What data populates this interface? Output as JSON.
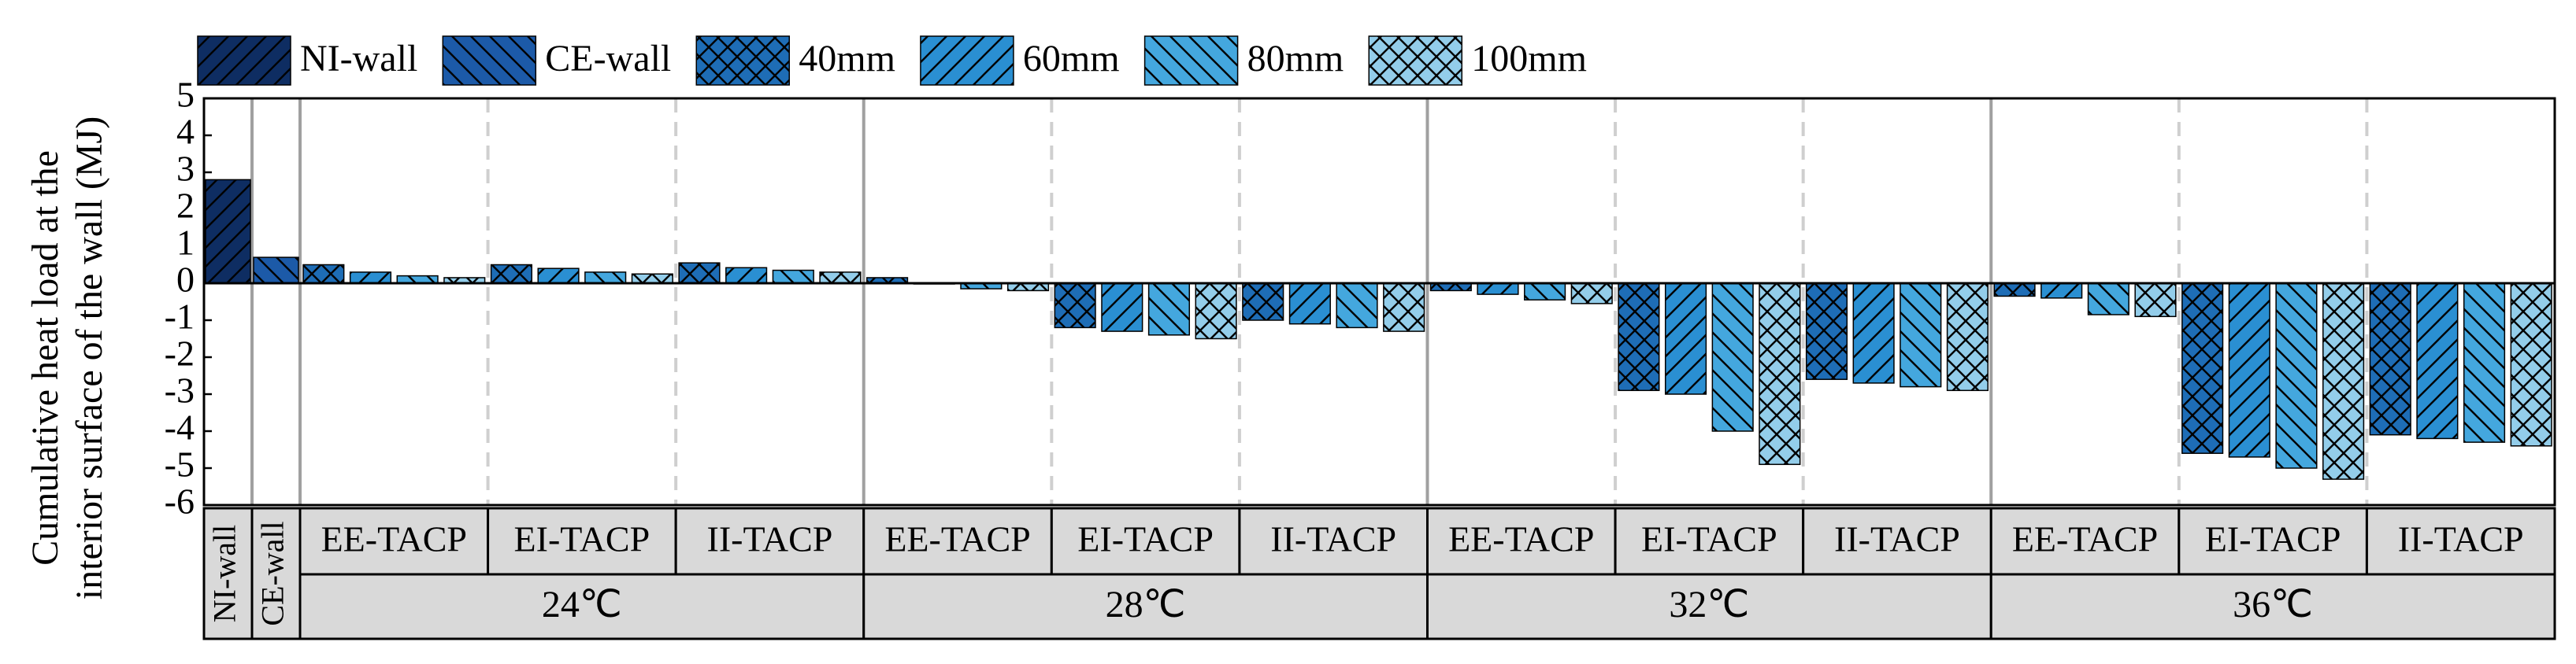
{
  "chart_data": {
    "type": "bar",
    "y_label": [
      "Cumulative heat load at the",
      "interior surface of the wall (MJ)"
    ],
    "categories": [
      "NI-wall",
      "CE-wall",
      "EE-TACP",
      "EI-TACP",
      "II-TACP",
      "EE-TACP",
      "EI-TACP",
      "II-TACP",
      "EE-TACP",
      "EI-TACP",
      "II-TACP",
      "EE-TACP",
      "EI-TACP",
      "II-TACP"
    ],
    "groups": [
      "24℃",
      "28℃",
      "32℃",
      "36℃"
    ],
    "ylim": [
      -6,
      5
    ],
    "yticks": [
      -6,
      -5,
      -4,
      -3,
      -2,
      -1,
      0,
      1,
      2,
      3,
      4,
      5
    ],
    "series": [
      {
        "name": "NI-wall",
        "color": "#0e2d62",
        "hatch": "/",
        "values": [
          2.8,
          null,
          null,
          null,
          null,
          null,
          null,
          null,
          null,
          null,
          null,
          null,
          null,
          null
        ]
      },
      {
        "name": "CE-wall",
        "color": "#1c5aa8",
        "hatch": "\\",
        "values": [
          null,
          0.7,
          null,
          null,
          null,
          null,
          null,
          null,
          null,
          null,
          null,
          null,
          null,
          null
        ]
      },
      {
        "name": "40mm",
        "color": "#1e6db6",
        "hatch": "x",
        "values": [
          null,
          null,
          0.5,
          0.5,
          0.55,
          0.15,
          -1.2,
          -1.0,
          -0.2,
          -2.9,
          -2.6,
          -0.35,
          -4.6,
          -4.1
        ]
      },
      {
        "name": "60mm",
        "color": "#2a8fd2",
        "hatch": "/",
        "values": [
          null,
          null,
          0.3,
          0.4,
          0.42,
          -0.02,
          -1.3,
          -1.1,
          -0.3,
          -3.0,
          -2.7,
          -0.4,
          -4.7,
          -4.2
        ]
      },
      {
        "name": "80mm",
        "color": "#44a7de",
        "hatch": "\\",
        "values": [
          null,
          null,
          0.2,
          0.3,
          0.35,
          -0.15,
          -1.4,
          -1.2,
          -0.45,
          -4.0,
          -2.8,
          -0.85,
          -5.0,
          -4.3
        ]
      },
      {
        "name": "100mm",
        "color": "#93cdea",
        "hatch": "x",
        "values": [
          null,
          null,
          0.15,
          0.25,
          0.3,
          -0.2,
          -1.5,
          -1.3,
          -0.55,
          -4.9,
          -2.9,
          -0.9,
          -5.3,
          -4.4
        ]
      }
    ]
  }
}
